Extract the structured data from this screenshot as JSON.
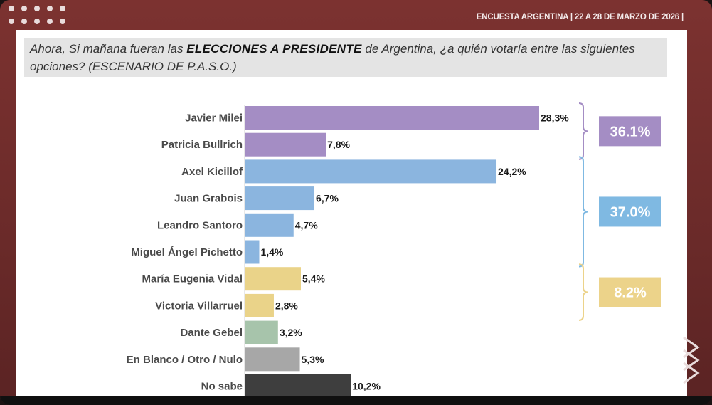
{
  "header": {
    "source": "ENCUESTA ARGENTINA | 22 A 28 DE MARZO DE 2026 |"
  },
  "question": {
    "prefix": "Ahora, Si mañana fueran las ",
    "bold": "ELECCIONES A PRESIDENTE",
    "suffix": " de Argentina, ¿a quién votaría entre las siguientes opciones? (ESCENARIO DE P.A.S.O.)"
  },
  "colors": {
    "purple": "#a48dc4",
    "blue": "#8bb5df",
    "yellow": "#ead389",
    "green": "#a7c4ab",
    "gray": "#a7a7a7",
    "dark": "#3e3e3e",
    "purple_badge": "#a48dc4",
    "blue_badge": "#7fb9e2",
    "yellow_badge": "#ecd38a"
  },
  "chart_data": {
    "type": "bar",
    "orientation": "horizontal",
    "categories": [
      "Javier Milei",
      "Patricia Bullrich",
      "Axel Kicillof",
      "Juan Grabois",
      "Leandro Santoro",
      "Miguel Ángel Pichetto",
      "María Eugenia Vidal",
      "Victoria Villarruel",
      "Dante Gebel",
      "En Blanco / Otro / Nulo",
      "No sabe"
    ],
    "values": [
      28.3,
      7.8,
      24.2,
      6.7,
      4.7,
      1.4,
      5.4,
      2.8,
      3.2,
      5.3,
      10.2
    ],
    "value_labels": [
      "28,3%",
      "7,8%",
      "24,2%",
      "6,7%",
      "4,7%",
      "1,4%",
      "5,4%",
      "2,8%",
      "3,2%",
      "5,3%",
      "10,2%"
    ],
    "bar_colors": [
      "purple",
      "purple",
      "blue",
      "blue",
      "blue",
      "blue",
      "yellow",
      "yellow",
      "green",
      "gray",
      "dark"
    ],
    "groups": [
      {
        "label": "36.1%",
        "from": 0,
        "to": 1,
        "color": "purple_badge"
      },
      {
        "label": "37.0%",
        "from": 2,
        "to": 5,
        "color": "blue_badge"
      },
      {
        "label": "8.2%",
        "from": 6,
        "to": 7,
        "color": "yellow_badge"
      }
    ],
    "xlim": [
      0,
      28.3
    ],
    "grid": false,
    "legend": "none"
  }
}
